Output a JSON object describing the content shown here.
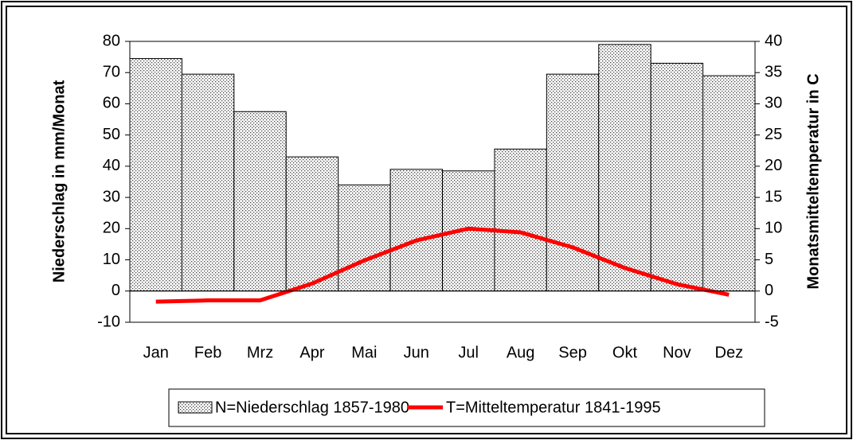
{
  "chart_data": {
    "type": "bar_line",
    "categories": [
      "Jan",
      "Feb",
      "Mrz",
      "Apr",
      "Mai",
      "Jun",
      "Jul",
      "Aug",
      "Sep",
      "Okt",
      "Nov",
      "Dez"
    ],
    "series": [
      {
        "name": "N=Niederschlag 1857-1980",
        "type": "bar",
        "axis": "y",
        "color": "#000000",
        "values": [
          74.5,
          69.5,
          57.5,
          43,
          34,
          39,
          38.5,
          45.5,
          69.5,
          79,
          73,
          69
        ]
      },
      {
        "name": "T=Mitteltemperatur 1841-1995",
        "type": "line",
        "axis": "y2",
        "color": "#ff0000",
        "values": [
          -1.7,
          -1.5,
          -1.5,
          1.2,
          4.9,
          8.1,
          10,
          9.4,
          7,
          3.7,
          1.1,
          -0.6
        ]
      }
    ],
    "ylabel": "Niederschlag in mm/Monat",
    "y2label": "Monatsmitteltemperatur in C",
    "ylim": [
      -10,
      80
    ],
    "yticks": [
      -10,
      0,
      10,
      20,
      30,
      40,
      50,
      60,
      70,
      80
    ],
    "y2lim": [
      -5,
      40
    ],
    "y2ticks": [
      -5,
      0,
      5,
      10,
      15,
      20,
      25,
      30,
      35,
      40
    ],
    "legend": "bottom"
  }
}
